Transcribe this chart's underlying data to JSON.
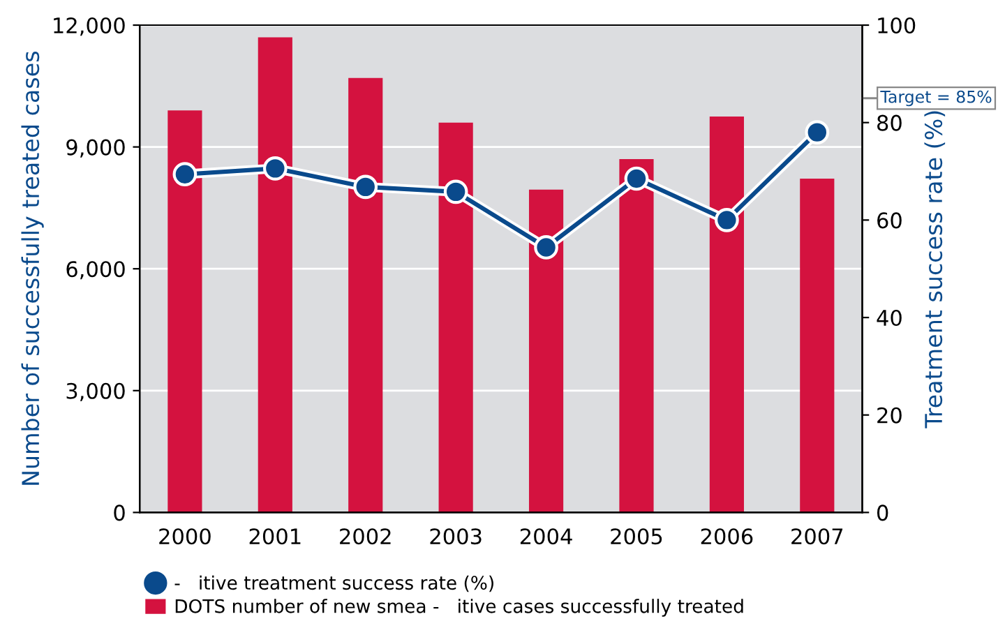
{
  "chart_data": {
    "type": "bar",
    "categories": [
      "2000",
      "2001",
      "2002",
      "2003",
      "2004",
      "2005",
      "2006",
      "2007"
    ],
    "series": [
      {
        "name": "DOTS number of new smea -   itive cases successfully treated",
        "color": "#d4123f",
        "values": [
          9900,
          11700,
          10700,
          9600,
          7950,
          8700,
          9750,
          8220
        ]
      },
      {
        "name": "-   itive treatment success rate (%)",
        "type": "line",
        "axis": "y2",
        "color": "#0a4a8c",
        "values": [
          69.4,
          70.6,
          66.8,
          65.8,
          54.4,
          68.5,
          60.0,
          78.0
        ]
      }
    ],
    "ylabel": "Number of successfully treated cases",
    "y2label": "Treatment success rate (%)",
    "ylim": [
      0,
      12000
    ],
    "yticks": [
      {
        "value": 0,
        "label": "0"
      },
      {
        "value": 3000,
        "label": "3,000"
      },
      {
        "value": 6000,
        "label": "6,000"
      },
      {
        "value": 9000,
        "label": "9,000"
      },
      {
        "value": 12000,
        "label": "12,000"
      }
    ],
    "y2lim": [
      0,
      100
    ],
    "y2ticks": [
      0,
      20,
      40,
      60,
      80,
      100
    ],
    "ref_lines": [
      {
        "axis": "y2",
        "value": 85,
        "label": "Target = 85%",
        "color": "#888888"
      }
    ],
    "grid": "y",
    "legend": "bottom",
    "marker": "circle",
    "line_style": "solid"
  }
}
